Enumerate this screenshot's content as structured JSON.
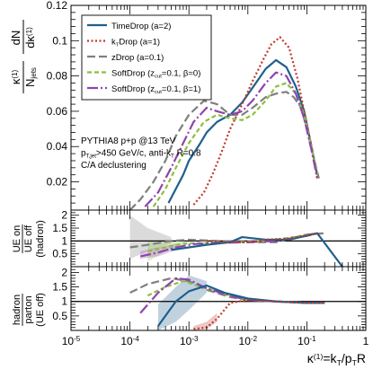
{
  "colors": {
    "timedrop": "#1f5f8b",
    "kt": "#c0392b",
    "zdrop": "#7f7f7f",
    "sd0": "#8cbf3f",
    "sd1": "#8e44ad"
  },
  "legend": {
    "entries": [
      {
        "key": "timedrop",
        "parts": [
          {
            "t": "TimeDrop (a=2)"
          }
        ]
      },
      {
        "key": "kt",
        "parts": [
          {
            "t": "k"
          },
          {
            "t": "T",
            "sub": true
          },
          {
            "t": "Drop (a=1)"
          }
        ]
      },
      {
        "key": "zdrop",
        "parts": [
          {
            "t": "zDrop (a=0.1)"
          }
        ]
      },
      {
        "key": "sd0",
        "parts": [
          {
            "t": "SoftDrop (z"
          },
          {
            "t": "cut",
            "sub": true
          },
          {
            "t": "=0.1, β=0)"
          }
        ]
      },
      {
        "key": "sd1",
        "parts": [
          {
            "t": "SoftDrop (z"
          },
          {
            "t": "cut",
            "sub": true
          },
          {
            "t": "=0.1, β=1)"
          }
        ]
      }
    ]
  },
  "annotations": {
    "lines": [
      [
        {
          "t": "PYTHIA8 p+p @13 TeV"
        }
      ],
      [
        {
          "t": "p"
        },
        {
          "t": "T,jet",
          "sub": true
        },
        {
          "t": ">450 GeV/c, anti-k"
        },
        {
          "t": "T",
          "sub": true
        },
        {
          "t": " R=0.8"
        }
      ],
      [
        {
          "t": "C/A declustering"
        }
      ]
    ]
  },
  "chart_data": {
    "type": "line",
    "x_scale": "log",
    "xlim": [
      1e-05,
      1
    ],
    "x_ticks": [
      "10^-5",
      "10^-4",
      "10^-3",
      "10^-2",
      "10^-1",
      "1"
    ],
    "xlabel": {
      "parts": [
        {
          "t": "κ"
        },
        {
          "t": "(1)",
          "sup": true
        },
        {
          "t": "=k"
        },
        {
          "t": "T",
          "sub": true
        },
        {
          "t": "/p"
        },
        {
          "t": "T",
          "sub": true
        },
        {
          "t": "R"
        }
      ]
    },
    "panels": [
      {
        "id": "main",
        "ylabel": "κ^(1)/N_jets dN/dκ^(1)",
        "ylim": [
          0.004,
          0.12
        ],
        "y_ticks": [
          0.02,
          0.04,
          0.06,
          0.08,
          0.1,
          0.12
        ],
        "series": [
          {
            "key": "timedrop",
            "name": "TimeDrop (a=2)",
            "x": [
              0.00045,
              0.0006,
              0.0008,
              0.001,
              0.0015,
              0.002,
              0.003,
              0.005,
              0.008,
              0.013,
              0.02,
              0.03,
              0.045,
              0.065,
              0.09,
              0.12,
              0.15
            ],
            "y": [
              0.008,
              0.016,
              0.024,
              0.032,
              0.041,
              0.048,
              0.054,
              0.058,
              0.065,
              0.075,
              0.084,
              0.089,
              0.085,
              0.074,
              0.06,
              0.04,
              0.024
            ]
          },
          {
            "key": "kt",
            "name": "kTDrop (a=1)",
            "x": [
              0.0012,
              0.0018,
              0.0025,
              0.0035,
              0.005,
              0.008,
              0.012,
              0.018,
              0.025,
              0.035,
              0.05,
              0.07,
              0.09,
              0.12,
              0.15
            ],
            "y": [
              0.007,
              0.014,
              0.024,
              0.036,
              0.05,
              0.064,
              0.077,
              0.089,
              0.098,
              0.102,
              0.096,
              0.078,
              0.06,
              0.04,
              0.022
            ]
          },
          {
            "key": "zdrop",
            "name": "zDrop (a=0.1)",
            "x": [
              0.0001,
              0.00015,
              0.00025,
              0.0004,
              0.0006,
              0.001,
              0.0018,
              0.003,
              0.005,
              0.008,
              0.012,
              0.02,
              0.03,
              0.045,
              0.06,
              0.08,
              0.1,
              0.13,
              0.16
            ],
            "y": [
              0.004,
              0.01,
              0.02,
              0.032,
              0.046,
              0.058,
              0.066,
              0.064,
              0.058,
              0.058,
              0.062,
              0.068,
              0.07,
              0.071,
              0.068,
              0.062,
              0.05,
              0.034,
              0.022
            ]
          },
          {
            "key": "sd0",
            "name": "SoftDrop (zcut=0.1, β=0)",
            "x": [
              0.00025,
              0.0004,
              0.0006,
              0.001,
              0.0018,
              0.003,
              0.005,
              0.008,
              0.012,
              0.02,
              0.03,
              0.045,
              0.065,
              0.09,
              0.12,
              0.15
            ],
            "y": [
              0.006,
              0.016,
              0.028,
              0.042,
              0.054,
              0.058,
              0.056,
              0.055,
              0.058,
              0.066,
              0.074,
              0.076,
              0.07,
              0.058,
              0.04,
              0.024
            ]
          },
          {
            "key": "sd1",
            "name": "SoftDrop (zcut=0.1, β=1)",
            "x": [
              0.00018,
              0.0003,
              0.0005,
              0.0008,
              0.0012,
              0.002,
              0.003,
              0.005,
              0.008,
              0.012,
              0.02,
              0.03,
              0.045,
              0.065,
              0.09,
              0.12,
              0.15
            ],
            "y": [
              0.006,
              0.014,
              0.028,
              0.042,
              0.054,
              0.062,
              0.06,
              0.058,
              0.06,
              0.066,
              0.076,
              0.082,
              0.08,
              0.07,
              0.056,
              0.038,
              0.022
            ]
          }
        ]
      },
      {
        "id": "ue",
        "ylabel": "UE on / UE off (hadron)",
        "ylim": [
          0,
          2.2
        ],
        "y_ticks": [
          0.5,
          1,
          1.5,
          2
        ],
        "reference_line": 1,
        "series": [
          {
            "key": "zdrop",
            "name": "zDrop (a=0.1)",
            "x": [
              0.0001,
              0.0002,
              0.0005,
              0.001,
              0.003,
              0.01,
              0.03,
              0.1,
              0.2
            ],
            "y": [
              0.75,
              0.85,
              1.0,
              1.05,
              1.0,
              0.95,
              0.95,
              1.25,
              1.3
            ],
            "band": [
              [
                0.0001,
                0.3,
                2.0
              ],
              [
                0.0002,
                0.6,
                1.5
              ],
              [
                0.0005,
                0.9,
                1.15
              ]
            ]
          },
          {
            "key": "sd0",
            "name": "SoftDrop (zcut=0.1, β=0)",
            "x": [
              0.0002,
              0.0004,
              0.0008,
              0.002,
              0.005,
              0.02,
              0.06,
              0.15
            ],
            "y": [
              0.6,
              0.75,
              0.9,
              0.92,
              0.95,
              1.0,
              1.15,
              1.3
            ],
            "band": [
              [
                0.0002,
                0.2,
                1.0
              ],
              [
                0.0004,
                0.6,
                1.0
              ],
              [
                0.0008,
                0.85,
                1.0
              ]
            ]
          },
          {
            "key": "sd1",
            "name": "SoftDrop (zcut=0.1, β=1)",
            "x": [
              0.00015,
              0.0003,
              0.0006,
              0.0012,
              0.003,
              0.01,
              0.03,
              0.1,
              0.15
            ],
            "y": [
              0.4,
              0.55,
              0.75,
              0.88,
              0.92,
              0.95,
              1.0,
              1.2,
              1.3
            ],
            "band": [
              [
                0.00015,
                0.3,
                0.6
              ],
              [
                0.0003,
                0.4,
                0.75
              ],
              [
                0.0006,
                0.65,
                0.9
              ]
            ]
          },
          {
            "key": "timedrop",
            "name": "TimeDrop (a=2)",
            "x": [
              0.0005,
              0.001,
              0.002,
              0.005,
              0.008,
              0.02,
              0.05,
              0.15,
              0.4
            ],
            "y": [
              0.65,
              0.75,
              0.85,
              0.95,
              1.15,
              1.05,
              1.05,
              1.3,
              0.0
            ]
          },
          {
            "key": "kt",
            "name": "kTDrop (a=1)",
            "x": [
              0.002,
              0.005,
              0.01,
              0.02,
              0.05,
              0.15
            ],
            "y": [
              1.0,
              0.95,
              0.95,
              1.05,
              1.1,
              1.3
            ]
          }
        ]
      },
      {
        "id": "np",
        "ylabel": "hadron / parton (UE off)",
        "ylim": [
          0,
          2.2
        ],
        "y_ticks": [
          0.5,
          1,
          1.5,
          2
        ],
        "reference_line": 1,
        "series": [
          {
            "key": "zdrop",
            "name": "zDrop (a=0.1)",
            "x": [
              0.0001,
              0.0002,
              0.0005,
              0.001,
              0.002,
              0.005,
              0.01,
              0.03,
              0.1,
              0.2
            ],
            "y": [
              1.3,
              1.6,
              1.8,
              1.7,
              1.4,
              1.15,
              1.05,
              1.0,
              0.95,
              0.95
            ]
          },
          {
            "key": "sd0",
            "name": "SoftDrop (zcut=0.1, β=0)",
            "x": [
              0.0002,
              0.0004,
              0.0008,
              0.002,
              0.005,
              0.01,
              0.03,
              0.1,
              0.2
            ],
            "y": [
              1.2,
              1.5,
              1.7,
              1.45,
              1.2,
              1.05,
              1.0,
              0.95,
              0.95
            ]
          },
          {
            "key": "sd1",
            "name": "SoftDrop (zcut=0.1, β=1)",
            "x": [
              0.00015,
              0.0003,
              0.0006,
              0.001,
              0.002,
              0.005,
              0.01,
              0.03,
              0.1,
              0.2
            ],
            "y": [
              0.6,
              1.3,
              1.8,
              1.75,
              1.45,
              1.2,
              1.05,
              1.0,
              0.95,
              0.95
            ]
          },
          {
            "key": "timedrop",
            "name": "TimeDrop (a=2)",
            "x": [
              0.0003,
              0.0006,
              0.001,
              0.002,
              0.004,
              0.01,
              0.03,
              0.1,
              0.2
            ],
            "y": [
              0.15,
              1.0,
              1.35,
              1.55,
              1.3,
              1.1,
              1.0,
              0.95,
              0.95
            ],
            "band": [
              [
                0.0003,
                0.0,
                0.9
              ],
              [
                0.0006,
                0.3,
                1.5
              ],
              [
                0.001,
                0.7,
                1.9
              ],
              [
                0.002,
                1.3,
                1.7
              ]
            ]
          },
          {
            "key": "kt",
            "name": "kTDrop (a=1)",
            "x": [
              0.0012,
              0.002,
              0.003,
              0.005,
              0.01,
              0.03,
              0.1,
              0.2
            ],
            "y": [
              0.05,
              0.1,
              0.4,
              0.95,
              1.05,
              1.0,
              0.95,
              0.95
            ],
            "band": [
              [
                0.0012,
                0.0,
                0.15
              ],
              [
                0.002,
                0.05,
                0.3
              ],
              [
                0.003,
                0.3,
                0.6
              ]
            ]
          }
        ]
      }
    ]
  }
}
